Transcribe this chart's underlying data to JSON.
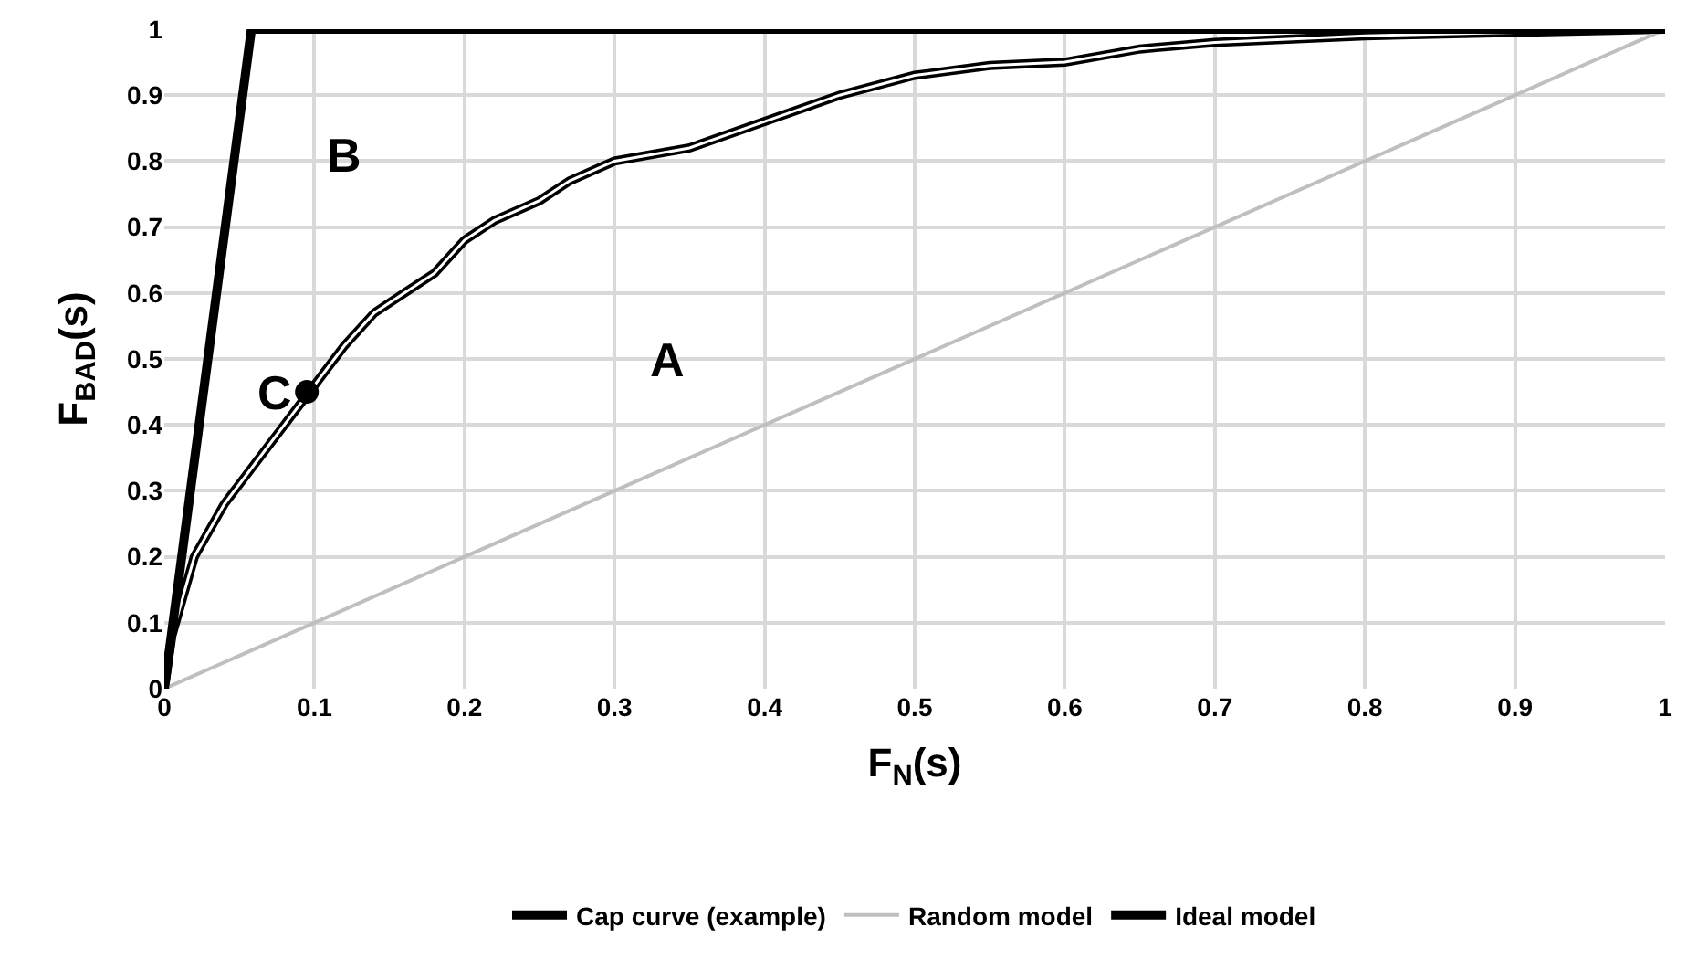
{
  "chart_data": {
    "type": "line",
    "xlabel": "F$_{N}$(s)",
    "ylabel": "F$_{BAD}$(s)",
    "xlim": [
      0,
      1
    ],
    "ylim": [
      0,
      1
    ],
    "xticks": [
      0,
      0.1,
      0.2,
      0.3,
      0.4,
      0.5,
      0.6,
      0.7,
      0.8,
      0.9,
      1
    ],
    "yticks": [
      0,
      0.1,
      0.2,
      0.3,
      0.4,
      0.5,
      0.6,
      0.7,
      0.8,
      0.9,
      1
    ],
    "grid": true,
    "legend": "bottom",
    "marker": "none",
    "series": [
      {
        "name": "Cap curve (example)",
        "color": "#000000",
        "x": [
          0,
          0.005,
          0.02,
          0.04,
          0.06,
          0.08,
          0.1,
          0.12,
          0.14,
          0.16,
          0.18,
          0.2,
          0.22,
          0.25,
          0.27,
          0.3,
          0.35,
          0.4,
          0.45,
          0.5,
          0.55,
          0.6,
          0.65,
          0.7,
          0.8,
          0.9,
          1
        ],
        "values": [
          0,
          0.08,
          0.2,
          0.28,
          0.34,
          0.4,
          0.46,
          0.52,
          0.57,
          0.6,
          0.63,
          0.68,
          0.71,
          0.74,
          0.77,
          0.8,
          0.82,
          0.86,
          0.9,
          0.93,
          0.945,
          0.95,
          0.97,
          0.98,
          0.99,
          0.995,
          1
        ]
      },
      {
        "name": "Random model",
        "color": "#bfbfbf",
        "x": [
          0,
          1
        ],
        "values": [
          0,
          1
        ]
      },
      {
        "name": "Ideal model",
        "color": "#000000",
        "x": [
          0,
          0.058,
          1
        ],
        "values": [
          0,
          1,
          1
        ]
      },
      {
        "type": "scatter",
        "color": "#000000",
        "marker": "circle",
        "x": [
          0.095
        ],
        "values": [
          0.45
        ]
      }
    ],
    "annotations": [
      "A",
      "B",
      {
        "text": "C",
        "x": 0.095,
        "y": 0.45
      }
    ]
  }
}
